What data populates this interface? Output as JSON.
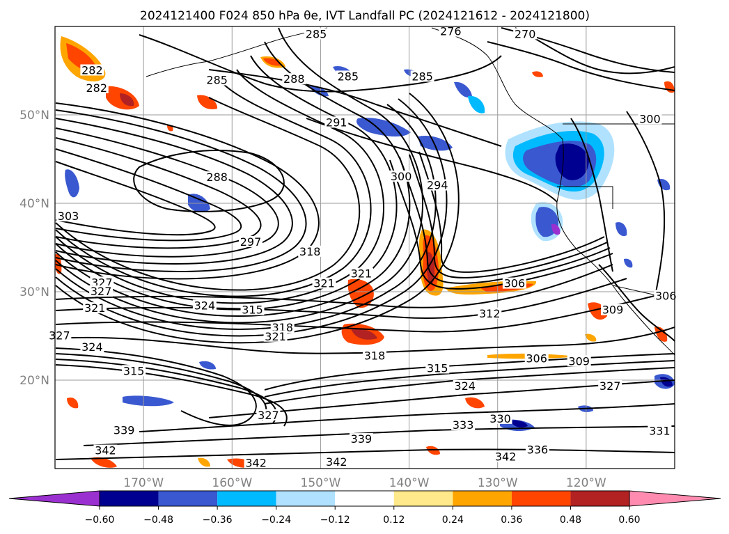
{
  "title": "2024121400 F024 850 hPa θe, IVT Landfall PC (2024121612 - 2024121800)",
  "map": {
    "lon_range": [
      -180,
      -110
    ],
    "lat_range": [
      10,
      60
    ],
    "lon_ticks": [
      {
        "lon": -170,
        "label": "170°W"
      },
      {
        "lon": -160,
        "label": "160°W"
      },
      {
        "lon": -150,
        "label": "150°W"
      },
      {
        "lon": -140,
        "label": "140°W"
      },
      {
        "lon": -130,
        "label": "130°W"
      },
      {
        "lon": -120,
        "label": "120°W"
      }
    ],
    "lat_ticks": [
      {
        "lat": 50,
        "label": "50°N"
      },
      {
        "lat": 40,
        "label": "40°N"
      },
      {
        "lat": 30,
        "label": "30°N"
      },
      {
        "lat": 20,
        "label": "20°N"
      }
    ],
    "gridlines": true
  },
  "contour_labels": [
    {
      "text": "285",
      "lon": -150.5,
      "lat": 59.1
    },
    {
      "text": "276",
      "lon": -135.3,
      "lat": 59.4
    },
    {
      "text": "270",
      "lon": -126.9,
      "lat": 59.1
    },
    {
      "text": "282",
      "lon": -175.8,
      "lat": 55.0
    },
    {
      "text": "282",
      "lon": -175.3,
      "lat": 53.0
    },
    {
      "text": "285",
      "lon": -161.7,
      "lat": 53.9
    },
    {
      "text": "288",
      "lon": -153.0,
      "lat": 54.0
    },
    {
      "text": "285",
      "lon": -146.9,
      "lat": 54.3
    },
    {
      "text": "285",
      "lon": -138.5,
      "lat": 54.3
    },
    {
      "text": "300",
      "lon": -112.8,
      "lat": 49.5
    },
    {
      "text": "291",
      "lon": -148.2,
      "lat": 49.1
    },
    {
      "text": "288",
      "lon": -161.7,
      "lat": 42.9
    },
    {
      "text": "300",
      "lon": -140.9,
      "lat": 43.0
    },
    {
      "text": "294",
      "lon": -136.8,
      "lat": 42.0
    },
    {
      "text": "303",
      "lon": -178.5,
      "lat": 38.5
    },
    {
      "text": "297",
      "lon": -157.9,
      "lat": 35.6
    },
    {
      "text": "318",
      "lon": -151.2,
      "lat": 34.5
    },
    {
      "text": "321",
      "lon": -145.4,
      "lat": 32.0
    },
    {
      "text": "321",
      "lon": -149.6,
      "lat": 30.9
    },
    {
      "text": "327",
      "lon": -174.7,
      "lat": 31.0
    },
    {
      "text": "327",
      "lon": -174.8,
      "lat": 30.0
    },
    {
      "text": "306",
      "lon": -128.1,
      "lat": 30.9
    },
    {
      "text": "321",
      "lon": -175.5,
      "lat": 28.1
    },
    {
      "text": "324",
      "lon": -163.1,
      "lat": 28.4
    },
    {
      "text": "315",
      "lon": -157.7,
      "lat": 27.9
    },
    {
      "text": "312",
      "lon": -130.9,
      "lat": 27.5
    },
    {
      "text": "309",
      "lon": -117.0,
      "lat": 27.9
    },
    {
      "text": "306",
      "lon": -111.0,
      "lat": 29.5
    },
    {
      "text": "318",
      "lon": -154.3,
      "lat": 25.9
    },
    {
      "text": "321",
      "lon": -155.1,
      "lat": 24.9
    },
    {
      "text": "327",
      "lon": -179.5,
      "lat": 25.0
    },
    {
      "text": "324",
      "lon": -175.8,
      "lat": 23.7
    },
    {
      "text": "318",
      "lon": -143.9,
      "lat": 22.7
    },
    {
      "text": "306",
      "lon": -125.6,
      "lat": 22.4
    },
    {
      "text": "309",
      "lon": -120.8,
      "lat": 22.1
    },
    {
      "text": "315",
      "lon": -136.8,
      "lat": 21.3
    },
    {
      "text": "324",
      "lon": -133.7,
      "lat": 19.3
    },
    {
      "text": "327",
      "lon": -117.3,
      "lat": 19.3
    },
    {
      "text": "315",
      "lon": -171.1,
      "lat": 21.0
    },
    {
      "text": "327",
      "lon": -155.9,
      "lat": 16.0
    },
    {
      "text": "330",
      "lon": -129.7,
      "lat": 15.6
    },
    {
      "text": "333",
      "lon": -133.9,
      "lat": 14.9
    },
    {
      "text": "339",
      "lon": -172.2,
      "lat": 14.3
    },
    {
      "text": "339",
      "lon": -145.4,
      "lat": 13.3
    },
    {
      "text": "331",
      "lon": -111.7,
      "lat": 14.2
    },
    {
      "text": "342",
      "lon": -174.3,
      "lat": 12.0
    },
    {
      "text": "336",
      "lon": -125.5,
      "lat": 12.1
    },
    {
      "text": "342",
      "lon": -129.1,
      "lat": 11.3
    },
    {
      "text": "342",
      "lon": -148.2,
      "lat": 10.7
    },
    {
      "text": "342",
      "lon": -157.3,
      "lat": 10.6
    }
  ],
  "colorbar": {
    "ticks": [
      "−0.60",
      "−0.48",
      "−0.36",
      "−0.24",
      "−0.12",
      "0.12",
      "0.24",
      "0.36",
      "0.48",
      "0.60"
    ],
    "under_color": "#9b30d0",
    "colors": [
      "#000090",
      "#3a58d0",
      "#00baff",
      "#b0e2ff",
      "#ffffff",
      "#ffe98a",
      "#ffa500",
      "#ff4500",
      "#b22222"
    ],
    "over_color": "#ff8cb0"
  },
  "palette": {
    "purple": "#9b30d0",
    "navy": "#000090",
    "royal": "#3a58d0",
    "sky": "#00baff",
    "light": "#b0e2ff",
    "yellow": "#ffe98a",
    "orange": "#ffa500",
    "red": "#ff4500",
    "firebrick": "#b22222",
    "pink": "#ff8cb0"
  }
}
